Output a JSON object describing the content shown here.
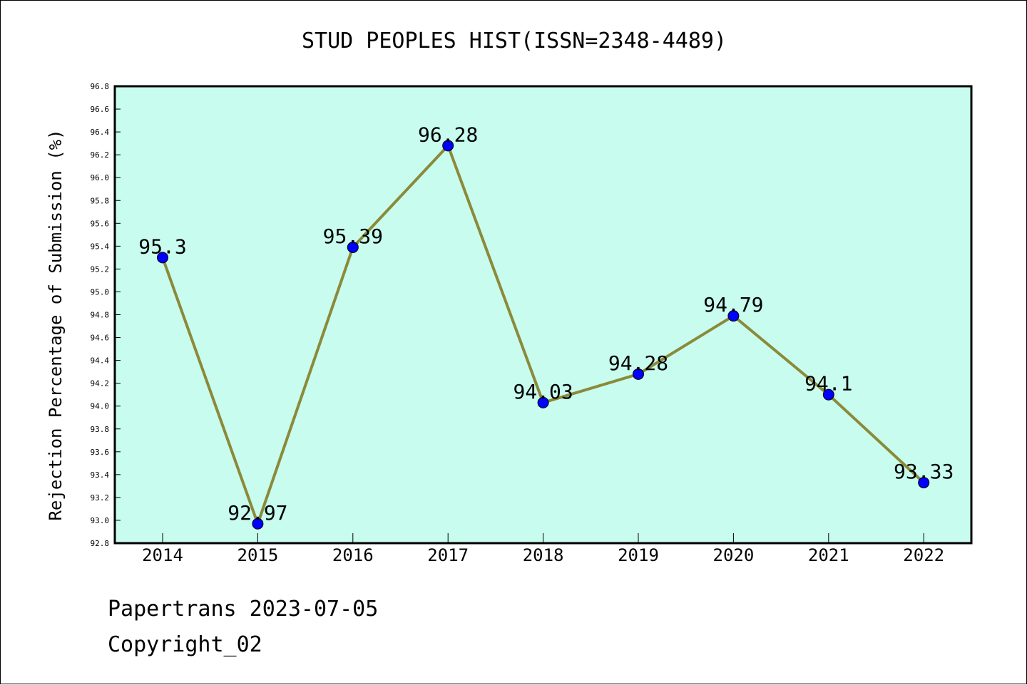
{
  "chart_data": {
    "type": "line",
    "title": "STUD PEOPLES HIST(ISSN=2348-4489)",
    "xlabel": "",
    "ylabel": "Rejection Percentage of Submission (%)",
    "categories": [
      "2014",
      "2015",
      "2016",
      "2017",
      "2018",
      "2019",
      "2020",
      "2021",
      "2022"
    ],
    "series": [
      {
        "values": [
          95.3,
          92.97,
          95.39,
          96.28,
          94.03,
          94.28,
          94.79,
          94.1,
          93.33
        ],
        "data_labels": [
          "95.3",
          "92.97",
          "95.39",
          "96.28",
          "94.03",
          "94.28",
          "94.79",
          "94.1",
          "93.33"
        ]
      }
    ],
    "ylim": [
      92.8,
      96.8
    ],
    "yticks": [
      "92.8",
      "93.0",
      "93.2",
      "93.4",
      "93.6",
      "93.8",
      "94.0",
      "94.2",
      "94.4",
      "94.6",
      "94.8",
      "95.0",
      "95.2",
      "95.4",
      "95.6",
      "95.8",
      "96.0",
      "96.2",
      "96.4",
      "96.6",
      "96.8"
    ],
    "grid": false,
    "legend": "none",
    "colors": {
      "plot_background": "#c8fcee",
      "line": "#8b8a3a",
      "marker": "#0000ff"
    }
  },
  "footer": {
    "source": "Papertrans 2023-07-05",
    "copyright": "Copyright_02"
  }
}
